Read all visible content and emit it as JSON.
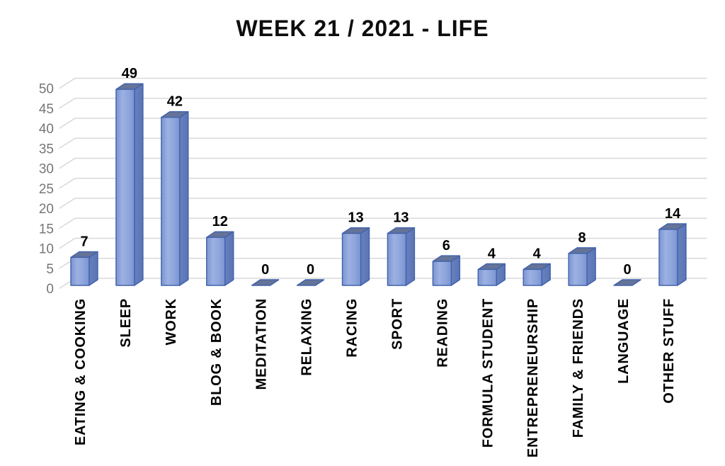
{
  "chart_data": {
    "type": "bar",
    "style": "3d-clustered-column",
    "title": "WEEK 21 / 2021 - LIFE",
    "categories": [
      "EATING & COOKING",
      "SLEEP",
      "WORK",
      "BLOG & BOOK",
      "MEDITATION",
      "RELAXING",
      "RACING",
      "SPORT",
      "READING",
      "FORMULA STUDENT",
      "ENTREPRENEURSHIP",
      "FAMILY & FRIENDS",
      "LANGUAGE",
      "OTHER STUFF"
    ],
    "values": [
      7,
      49,
      42,
      12,
      0,
      0,
      13,
      13,
      6,
      4,
      4,
      8,
      0,
      14
    ],
    "data_labels": true,
    "data_label_position": "above",
    "xlabel": "",
    "ylabel": "",
    "ylim": [
      0,
      50
    ],
    "ytick_step": 5,
    "yticks": [
      0,
      5,
      10,
      15,
      20,
      25,
      30,
      35,
      40,
      45,
      50
    ],
    "grid": true,
    "legend": false,
    "category_label_rotation": 90,
    "colors": {
      "bar_front_light": "#9cb1e3",
      "bar_front": "#8da5db",
      "bar_front_dark": "#7b93cf",
      "bar_side": "#6780bf",
      "bar_top": "#657398",
      "bar_border": "#4062ac",
      "gridline": "#d9d9d9",
      "axis_label": "#767676",
      "data_label": "#000000",
      "title": "#0d0d0d",
      "background": "#ffffff"
    }
  }
}
